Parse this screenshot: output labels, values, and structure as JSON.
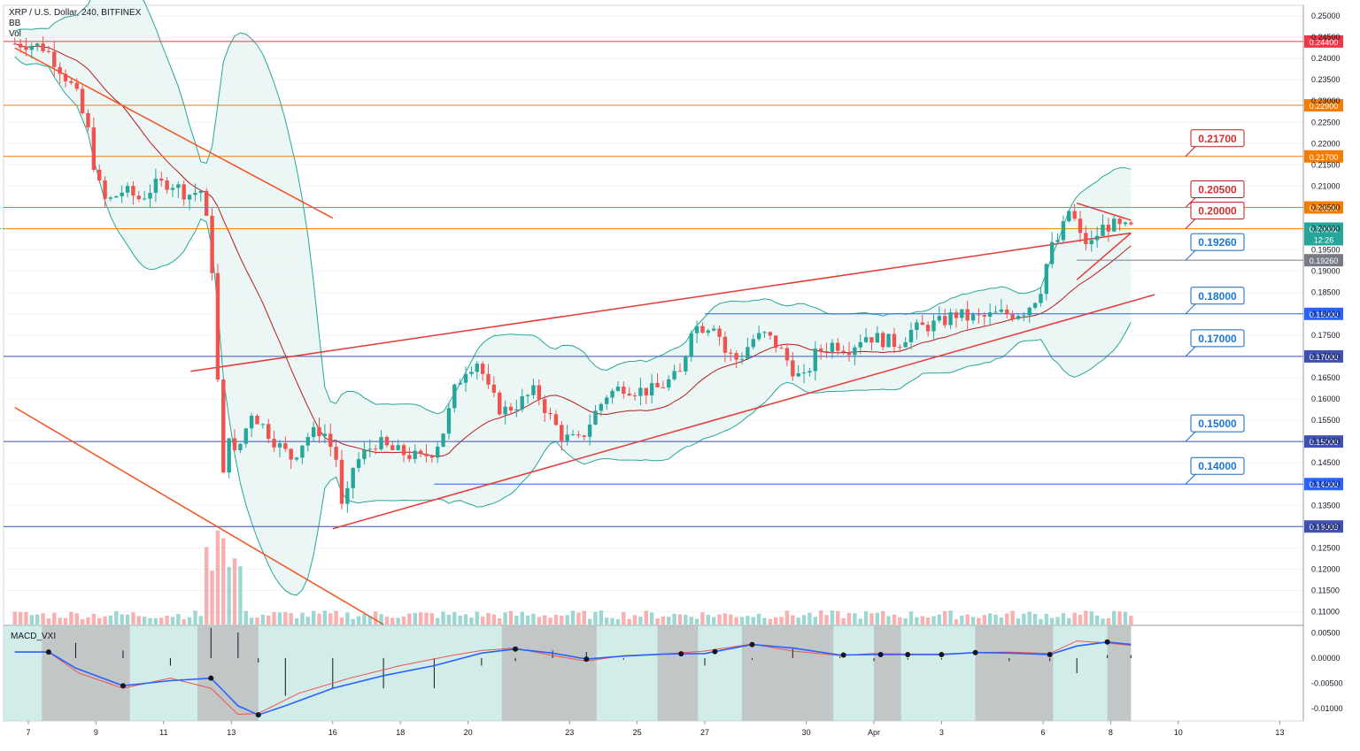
{
  "legend": {
    "title": "XRP / U.S. Dollar, 240, BITFINEX",
    "bb": "BB",
    "vol": "Vol"
  },
  "macd_label": "MACD_VXI",
  "colors": {
    "up": "#26a69a",
    "down": "#ef5350",
    "bb": "#26a69a",
    "bb_fill": "#e6f4f2",
    "basis": "#b71c1c",
    "trend_red": "#e53935",
    "trend_orange": "#f4511e",
    "h_red": "#f23645",
    "h_orange": "#f57c00",
    "h_blue": "#2962ff",
    "h_indigo": "#3f51b5",
    "macd_blue": "#2962ff",
    "macd_red": "#ef5350",
    "macd_bg": "#b2dfdb",
    "macd_shade": "#bdbdbd"
  },
  "price_axis": {
    "ticks": [
      "0.25000",
      "0.24500",
      "0.24000",
      "0.23500",
      "0.23000",
      "0.22500",
      "0.22000",
      "0.21500",
      "0.21000",
      "0.20500",
      "0.20000",
      "0.19500",
      "0.19000",
      "0.18500",
      "0.18000",
      "0.17500",
      "0.17000",
      "0.16500",
      "0.16000",
      "0.15500",
      "0.15000",
      "0.14500",
      "0.14000",
      "0.13500",
      "0.13000",
      "0.12500",
      "0.12000",
      "0.11500",
      "0.11000"
    ],
    "range": [
      0.107,
      0.2525
    ]
  },
  "macd_axis": {
    "ticks": [
      "0.00500",
      "0.00000",
      "-0.00500",
      "-0.01000"
    ],
    "range": [
      -0.0125,
      0.0065
    ]
  },
  "time_axis": [
    "7",
    "9",
    "11",
    "13",
    "16",
    "18",
    "20",
    "23",
    "25",
    "27",
    "30",
    "Apr",
    "3",
    "6",
    "8",
    "10",
    "13"
  ],
  "horizontal_levels": [
    {
      "price": 0.244,
      "label": "0.24400",
      "color": "red"
    },
    {
      "price": 0.229,
      "label": "0.22900",
      "color": "orange"
    },
    {
      "price": 0.217,
      "label": "0.21700",
      "color": "orange"
    },
    {
      "price": 0.205,
      "label": "0.20500",
      "color": "orange"
    },
    {
      "price": 0.2,
      "label": "0.20000",
      "color": "orange"
    },
    {
      "price": 0.1926,
      "label": "0.19260",
      "color": "gray"
    },
    {
      "price": 0.18,
      "label": "0.18000",
      "color": "blue"
    },
    {
      "price": 0.17,
      "label": "0.17000",
      "color": "indigo"
    },
    {
      "price": 0.15,
      "label": "0.15000",
      "color": "indigo"
    },
    {
      "price": 0.14,
      "label": "0.14000",
      "color": "blue"
    },
    {
      "price": 0.13003,
      "label": "0.13003",
      "color": "indigo"
    }
  ],
  "current_price": {
    "price": 0.20002,
    "label": "0.20002",
    "countdown": "12:26"
  },
  "callouts": [
    {
      "label": "0.21700",
      "price": 0.217,
      "color": "red"
    },
    {
      "label": "0.20500",
      "price": 0.205,
      "color": "red"
    },
    {
      "label": "0.20000",
      "price": 0.2,
      "color": "red"
    },
    {
      "label": "0.19260",
      "price": 0.1926,
      "color": "blue"
    },
    {
      "label": "0.18000",
      "price": 0.18,
      "color": "blue"
    },
    {
      "label": "0.17000",
      "price": 0.17,
      "color": "blue"
    },
    {
      "label": "0.15000",
      "price": 0.15,
      "color": "blue"
    },
    {
      "label": "0.14000",
      "price": 0.14,
      "color": "blue"
    }
  ],
  "chart_data": {
    "type": "candlestick",
    "symbol": "XRP / U.S. Dollar",
    "timeframe": "240",
    "exchange": "BITFINEX",
    "close_path": [
      [
        7.0,
        0.2435
      ],
      [
        7.5,
        0.2425
      ],
      [
        8.0,
        0.237
      ],
      [
        8.4,
        0.232
      ],
      [
        8.8,
        0.222
      ],
      [
        9.0,
        0.212
      ],
      [
        9.3,
        0.206
      ],
      [
        9.8,
        0.209
      ],
      [
        10.3,
        0.207
      ],
      [
        10.7,
        0.21
      ],
      [
        11.2,
        0.211
      ],
      [
        11.7,
        0.208
      ],
      [
        12.1,
        0.209
      ],
      [
        12.35,
        0.198
      ],
      [
        12.5,
        0.185
      ],
      [
        12.6,
        0.164
      ],
      [
        12.75,
        0.14
      ],
      [
        12.9,
        0.154
      ],
      [
        13.05,
        0.146
      ],
      [
        13.3,
        0.15
      ],
      [
        13.6,
        0.157
      ],
      [
        14.0,
        0.153
      ],
      [
        14.4,
        0.149
      ],
      [
        14.8,
        0.146
      ],
      [
        15.2,
        0.151
      ],
      [
        15.7,
        0.153
      ],
      [
        16.1,
        0.146
      ],
      [
        16.3,
        0.132
      ],
      [
        16.6,
        0.144
      ],
      [
        16.9,
        0.147
      ],
      [
        17.3,
        0.15
      ],
      [
        17.7,
        0.148
      ],
      [
        18.2,
        0.147
      ],
      [
        18.6,
        0.146
      ],
      [
        19.0,
        0.148
      ],
      [
        19.3,
        0.153
      ],
      [
        19.6,
        0.162
      ],
      [
        19.9,
        0.167
      ],
      [
        20.3,
        0.169
      ],
      [
        20.6,
        0.162
      ],
      [
        21.0,
        0.157
      ],
      [
        21.5,
        0.159
      ],
      [
        22.0,
        0.162
      ],
      [
        22.4,
        0.156
      ],
      [
        22.8,
        0.151
      ],
      [
        23.3,
        0.15
      ],
      [
        23.7,
        0.156
      ],
      [
        24.1,
        0.161
      ],
      [
        24.6,
        0.163
      ],
      [
        25.0,
        0.162
      ],
      [
        25.5,
        0.162
      ],
      [
        25.9,
        0.164
      ],
      [
        26.3,
        0.166
      ],
      [
        26.6,
        0.177
      ],
      [
        27.0,
        0.177
      ],
      [
        27.3,
        0.178
      ],
      [
        27.6,
        0.171
      ],
      [
        28.0,
        0.169
      ],
      [
        28.4,
        0.174
      ],
      [
        28.8,
        0.175
      ],
      [
        29.2,
        0.172
      ],
      [
        29.6,
        0.167
      ],
      [
        29.9,
        0.164
      ],
      [
        30.3,
        0.171
      ],
      [
        30.8,
        0.173
      ],
      [
        31.3,
        0.172
      ],
      [
        31.7,
        0.175
      ],
      [
        32.2,
        0.174
      ],
      [
        32.7,
        0.173
      ],
      [
        33.1,
        0.176
      ],
      [
        33.5,
        0.177
      ],
      [
        34.0,
        0.178
      ],
      [
        34.4,
        0.18
      ],
      [
        34.8,
        0.179
      ],
      [
        35.2,
        0.179
      ],
      [
        35.7,
        0.18
      ],
      [
        36.1,
        0.18
      ],
      [
        36.5,
        0.181
      ],
      [
        36.9,
        0.185
      ],
      [
        37.2,
        0.195
      ],
      [
        37.5,
        0.198
      ],
      [
        37.8,
        0.205
      ],
      [
        38.1,
        0.198
      ],
      [
        38.4,
        0.196
      ],
      [
        38.7,
        0.2
      ],
      [
        39.0,
        0.201
      ],
      [
        39.3,
        0.2
      ],
      [
        39.6,
        0.2
      ]
    ],
    "volume_relative": "spikes near 12 and 13, otherwise low",
    "indicators": [
      "Bollinger Bands",
      "Volume",
      "MACD_VXI"
    ],
    "macd_line": [
      [
        6.6,
        0.0012
      ],
      [
        7.6,
        0.0012
      ],
      [
        8.4,
        -0.002
      ],
      [
        9.8,
        -0.0055
      ],
      [
        11.2,
        -0.0045
      ],
      [
        12.4,
        -0.004
      ],
      [
        13.2,
        -0.0095
      ],
      [
        13.8,
        -0.0113
      ],
      [
        14.6,
        -0.0095
      ],
      [
        16.0,
        -0.006
      ],
      [
        17.5,
        -0.0035
      ],
      [
        19.0,
        -0.0015
      ],
      [
        20.4,
        0.001
      ],
      [
        21.4,
        0.0018
      ],
      [
        22.5,
        0.001
      ],
      [
        23.5,
        -0.0002
      ],
      [
        24.6,
        0.0004
      ],
      [
        25.8,
        0.0008
      ],
      [
        27.0,
        0.0009
      ],
      [
        28.4,
        0.0027
      ],
      [
        29.6,
        0.002
      ],
      [
        31.0,
        0.0006
      ],
      [
        32.0,
        0.0007
      ],
      [
        33.0,
        0.0007
      ],
      [
        34.0,
        0.0007
      ],
      [
        35.0,
        0.0011
      ],
      [
        36.0,
        0.001
      ],
      [
        37.2,
        0.0007
      ],
      [
        38.0,
        0.0024
      ],
      [
        38.9,
        0.0032
      ],
      [
        39.6,
        0.0027
      ]
    ],
    "macd_signal": [
      [
        6.6,
        0.0012
      ],
      [
        7.6,
        0.0012
      ],
      [
        8.5,
        -0.003
      ],
      [
        9.8,
        -0.006
      ],
      [
        11.2,
        -0.004
      ],
      [
        12.4,
        -0.006
      ],
      [
        13.2,
        -0.0112
      ],
      [
        13.8,
        -0.011
      ],
      [
        15.0,
        -0.007
      ],
      [
        16.5,
        -0.004
      ],
      [
        18.0,
        -0.0015
      ],
      [
        19.5,
        0.0005
      ],
      [
        20.4,
        0.0015
      ],
      [
        21.4,
        0.002
      ],
      [
        22.5,
        0.0005
      ],
      [
        23.5,
        -0.0006
      ],
      [
        24.6,
        0.0005
      ],
      [
        25.8,
        0.0008
      ],
      [
        27.0,
        0.0014
      ],
      [
        28.4,
        0.0028
      ],
      [
        29.6,
        0.0014
      ],
      [
        31.0,
        0.0005
      ],
      [
        32.0,
        0.0009
      ],
      [
        33.0,
        0.0008
      ],
      [
        34.0,
        0.0008
      ],
      [
        35.0,
        0.0011
      ],
      [
        36.0,
        0.0012
      ],
      [
        37.2,
        0.0009
      ],
      [
        38.0,
        0.0034
      ],
      [
        38.9,
        0.003
      ],
      [
        39.6,
        0.0025
      ]
    ],
    "macd_dots_x": [
      7.6,
      9.8,
      12.4,
      13.8,
      21.4,
      23.5,
      26.3,
      27.3,
      28.4,
      31.1,
      32.2,
      33.0,
      34.0,
      35.0,
      37.2,
      38.9
    ]
  }
}
